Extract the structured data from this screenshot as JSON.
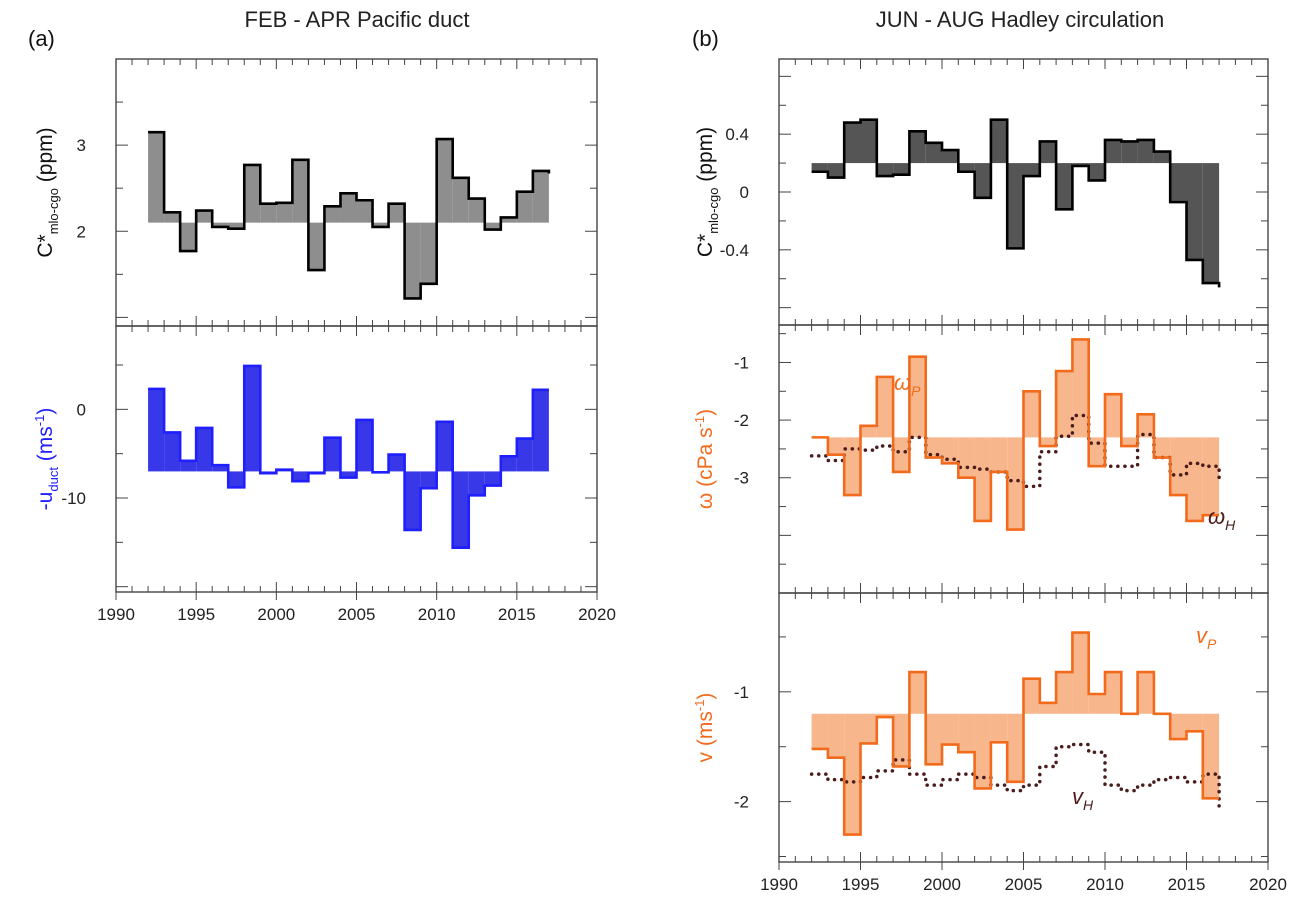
{
  "figure": {
    "panel_a_label": "(a)",
    "panel_b_label": "(b)",
    "panel_a_title": "FEB - APR Pacific duct",
    "panel_b_title": "JUN - AUG Hadley circulation"
  },
  "colors": {
    "black": "#000000",
    "gray_fill": "#8e8e8e",
    "dark_fill": "#555555",
    "blue": "#1f1fff",
    "blue_fill": "#3838e8",
    "orange": "#f26b1d",
    "orange_fill": "#f7b68c",
    "brown": "#4a1c1c",
    "axis": "#444444"
  },
  "chart_data": [
    {
      "id": "a-top",
      "type": "line",
      "step": true,
      "shaded_to_baseline": true,
      "x": [
        1992,
        1993,
        1994,
        1995,
        1996,
        1997,
        1998,
        1999,
        2000,
        2001,
        2002,
        2003,
        2004,
        2005,
        2006,
        2007,
        2008,
        2009,
        2010,
        2011,
        2012,
        2013,
        2014,
        2015,
        2016,
        2017
      ],
      "series": [
        {
          "values": [
            3.15,
            2.22,
            1.77,
            2.24,
            2.05,
            2.03,
            2.77,
            2.32,
            2.33,
            2.83,
            1.55,
            2.29,
            2.44,
            2.36,
            2.05,
            2.32,
            1.22,
            1.39,
            3.07,
            2.62,
            2.38,
            2.02,
            2.16,
            2.46,
            2.7,
            2.67
          ]
        }
      ],
      "baseline": 2.1,
      "ylabel": "C*",
      "ylabel_sub": "mlo-cgo",
      "ylabel_unit": "(ppm)",
      "yticks": [
        "2",
        "3"
      ],
      "ytick_values": [
        2,
        3
      ],
      "ylim": [
        0.9,
        4.0
      ],
      "xlim": [
        1990,
        2020
      ]
    },
    {
      "id": "a-bottom",
      "type": "line",
      "step": true,
      "shaded_to_baseline": true,
      "x": [
        1992,
        1993,
        1994,
        1995,
        1996,
        1997,
        1998,
        1999,
        2000,
        2001,
        2002,
        2003,
        2004,
        2005,
        2006,
        2007,
        2008,
        2009,
        2010,
        2011,
        2012,
        2013,
        2014,
        2015,
        2016,
        2017
      ],
      "series": [
        {
          "values": [
            2.3,
            -2.6,
            -5.8,
            -2.1,
            -6.3,
            -8.8,
            4.9,
            -7.2,
            -6.8,
            -8.1,
            -7.2,
            -3.2,
            -7.7,
            -1.2,
            -7.1,
            -5.1,
            -13.6,
            -8.9,
            -1.4,
            -15.6,
            -9.7,
            -8.6,
            -5.3,
            -3.3,
            2.2,
            2.2
          ]
        }
      ],
      "baseline": -7,
      "ylabel": "-u",
      "ylabel_sub": "duct",
      "ylabel_unit": "(ms",
      "ylabel_sup": "-1",
      "ylabel_close": ")",
      "yticks": [
        "-10",
        "0"
      ],
      "ytick_values": [
        -10,
        0
      ],
      "ylim": [
        -20.6,
        9.4
      ],
      "xticks": [
        "1990",
        "1995",
        "2000",
        "2005",
        "2010",
        "2015",
        "2020"
      ],
      "xlim": [
        1990,
        2020
      ]
    },
    {
      "id": "b-top",
      "type": "line",
      "step": true,
      "shaded_to_baseline": true,
      "x": [
        1992,
        1993,
        1994,
        1995,
        1996,
        1997,
        1998,
        1999,
        2000,
        2001,
        2002,
        2003,
        2004,
        2005,
        2006,
        2007,
        2008,
        2009,
        2010,
        2011,
        2012,
        2013,
        2014,
        2015,
        2016,
        2017
      ],
      "series": [
        {
          "values": [
            0.14,
            0.1,
            0.48,
            0.5,
            0.11,
            0.12,
            0.42,
            0.34,
            0.29,
            0.14,
            -0.04,
            0.5,
            -0.39,
            0.11,
            0.35,
            -0.12,
            0.18,
            0.08,
            0.36,
            0.35,
            0.36,
            0.28,
            -0.07,
            -0.47,
            -0.63,
            -0.66
          ]
        }
      ],
      "baseline": 0.2,
      "ylabel": "C*",
      "ylabel_sub": "mlo-cgo",
      "ylabel_unit": "(ppm)",
      "yticks": [
        "-0.4",
        "0",
        "0.4"
      ],
      "ytick_values": [
        -0.4,
        0,
        0.4
      ],
      "ylim": [
        -0.92,
        0.92
      ],
      "xlim": [
        1990,
        2020
      ]
    },
    {
      "id": "b-middle",
      "type": "line",
      "step": true,
      "shaded_to_baseline": true,
      "x": [
        1992,
        1993,
        1994,
        1995,
        1996,
        1997,
        1998,
        1999,
        2000,
        2001,
        2002,
        2003,
        2004,
        2005,
        2006,
        2007,
        2008,
        2009,
        2010,
        2011,
        2012,
        2013,
        2014,
        2015,
        2016,
        2017
      ],
      "series": [
        {
          "name": "ω",
          "name_sub": "P",
          "values": [
            -2.3,
            -2.6,
            -3.3,
            -2.1,
            -1.25,
            -2.9,
            -0.9,
            -2.65,
            -2.75,
            -3.0,
            -3.75,
            -2.9,
            -3.9,
            -1.5,
            -2.45,
            -1.15,
            -0.6,
            -2.8,
            -1.55,
            -2.45,
            -1.9,
            -2.65,
            -3.3,
            -3.75,
            -3.65,
            -3.65
          ]
        },
        {
          "name": "ω",
          "name_sub": "H",
          "values": [
            -2.62,
            -2.7,
            -2.5,
            -2.52,
            -2.45,
            -2.55,
            -2.3,
            -2.6,
            -2.68,
            -2.82,
            -2.85,
            -2.9,
            -3.05,
            -3.15,
            -2.55,
            -2.28,
            -1.92,
            -2.4,
            -2.8,
            -2.8,
            -2.25,
            -2.65,
            -2.95,
            -2.75,
            -2.8,
            -3.1
          ]
        }
      ],
      "baseline": -2.3,
      "ylabel": "ω",
      "ylabel_unit": "(cPa s",
      "ylabel_sup": "-1",
      "ylabel_close": ")",
      "yticks": [
        "-3",
        "-2",
        "-1"
      ],
      "ytick_values": [
        -3,
        -2,
        -1
      ],
      "ylim": [
        -5.0,
        -0.35
      ],
      "xlim": [
        1990,
        2020
      ]
    },
    {
      "id": "b-bottom",
      "type": "line",
      "step": true,
      "shaded_to_baseline": true,
      "x": [
        1992,
        1993,
        1994,
        1995,
        1996,
        1997,
        1998,
        1999,
        2000,
        2001,
        2002,
        2003,
        2004,
        2005,
        2006,
        2007,
        2008,
        2009,
        2010,
        2011,
        2012,
        2013,
        2014,
        2015,
        2016,
        2017
      ],
      "series": [
        {
          "name": "v",
          "name_sub": "P",
          "values": [
            -1.52,
            -1.6,
            -2.3,
            -1.47,
            -1.23,
            -1.68,
            -0.82,
            -1.66,
            -1.48,
            -1.55,
            -1.88,
            -1.46,
            -1.82,
            -0.88,
            -1.1,
            -0.82,
            -0.46,
            -1.02,
            -0.82,
            -1.2,
            -0.82,
            -1.2,
            -1.43,
            -1.36,
            -1.97,
            -1.97
          ]
        },
        {
          "name": "v",
          "name_sub": "H",
          "values": [
            -1.75,
            -1.8,
            -1.82,
            -1.78,
            -1.72,
            -1.62,
            -1.75,
            -1.85,
            -1.8,
            -1.75,
            -1.78,
            -1.85,
            -1.9,
            -1.85,
            -1.68,
            -1.5,
            -1.48,
            -1.55,
            -1.85,
            -1.9,
            -1.85,
            -1.8,
            -1.78,
            -1.82,
            -1.75,
            -2.05
          ]
        }
      ],
      "baseline": -1.2,
      "ylabel": "v",
      "ylabel_unit": "(ms",
      "ylabel_sup": "-1",
      "ylabel_close": ")",
      "yticks": [
        "-2",
        "-1"
      ],
      "ytick_values": [
        -2,
        -1
      ],
      "ylim": [
        -2.55,
        -0.1
      ],
      "xticks": [
        "1990",
        "1995",
        "2000",
        "2005",
        "2010",
        "2015",
        "2020"
      ],
      "xlim": [
        1990,
        2020
      ]
    }
  ]
}
